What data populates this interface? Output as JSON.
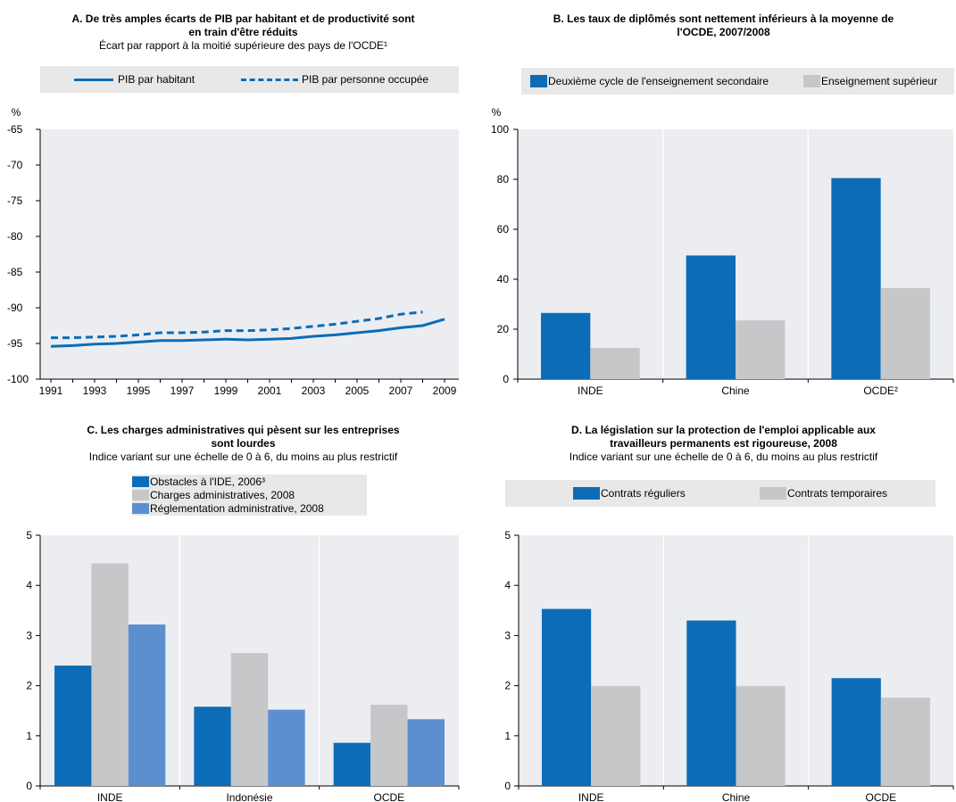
{
  "colors": {
    "blue": "#0c6cb7",
    "grey": "#c6c7c8",
    "lightblue": "#5b8fcf",
    "plotbg": "#ebedf1",
    "legendbg": "#e8e8e8"
  },
  "panels": {
    "a": {
      "title_line1": "A. De très amples écarts de PIB par habitant et de productivité sont",
      "title_line2": "en train d'être réduits",
      "subtitle": "Écart par rapport à la moitié supérieure des pays de l'OCDE¹",
      "legend1": "PIB par habitant",
      "legend2": "PIB par personne occupée",
      "unit": "%"
    },
    "b": {
      "title_line1": "B. Les taux de diplômés sont nettement inférieurs à la moyenne de",
      "title_line2": "l'OCDE, 2007/2008",
      "legend1": "Deuxième cycle de l'enseignement secondaire",
      "legend2": "Enseignement supérieur",
      "unit": "%"
    },
    "c": {
      "title_line1": "C. Les charges administratives qui pèsent sur les entreprises",
      "title_line2": "sont lourdes",
      "subtitle": "Indice variant sur une échelle de 0 à 6, du moins au plus restrictif",
      "legend1": "Obstacles à l'IDE, 2006³",
      "legend2": "Charges administratives, 2008",
      "legend3": "Réglementation administrative, 2008"
    },
    "d": {
      "title_line1": "D. La législation sur la protection de l'emploi applicable aux",
      "title_line2": "travailleurs permanents est rigoureuse, 2008",
      "subtitle": "Indice variant sur une échelle de 0 à 6, du moins au plus restrictif",
      "legend1": "Contrats réguliers",
      "legend2": "Contrats temporaires"
    }
  },
  "chart_data": [
    {
      "type": "line",
      "title": "A. De très amples écarts de PIB par habitant et de productivité sont en train d'être réduits",
      "subtitle": "Écart par rapport à la moitié supérieure des pays de l'OCDE¹",
      "ylabel": "%",
      "ylim": [
        -100,
        -65
      ],
      "yticks": [
        -65,
        -70,
        -75,
        -80,
        -85,
        -90,
        -95,
        -100
      ],
      "xticks": [
        "1991",
        "1993",
        "1995",
        "1997",
        "1999",
        "2001",
        "2003",
        "2005",
        "2007",
        "2009"
      ],
      "xlim": [
        1991,
        2009
      ],
      "series": [
        {
          "name": "PIB par habitant",
          "style": "solid",
          "x": [
            1991,
            1992,
            1993,
            1994,
            1995,
            1996,
            1997,
            1998,
            1999,
            2000,
            2001,
            2002,
            2003,
            2004,
            2005,
            2006,
            2007,
            2008,
            2009
          ],
          "values": [
            -95.4,
            -95.3,
            -95.1,
            -95.0,
            -94.8,
            -94.6,
            -94.6,
            -94.5,
            -94.4,
            -94.5,
            -94.4,
            -94.3,
            -94.0,
            -93.8,
            -93.5,
            -93.2,
            -92.8,
            -92.5,
            -91.6
          ]
        },
        {
          "name": "PIB par personne occupée",
          "style": "dashed",
          "x": [
            1991,
            1992,
            1993,
            1994,
            1995,
            1996,
            1997,
            1998,
            1999,
            2000,
            2001,
            2002,
            2003,
            2004,
            2005,
            2006,
            2007,
            2008
          ],
          "values": [
            -94.2,
            -94.2,
            -94.1,
            -94.0,
            -93.8,
            -93.5,
            -93.5,
            -93.4,
            -93.2,
            -93.2,
            -93.1,
            -92.9,
            -92.6,
            -92.3,
            -91.9,
            -91.5,
            -90.9,
            -90.6
          ]
        }
      ]
    },
    {
      "type": "bar",
      "title": "B. Les taux de diplômés sont nettement inférieurs à la moyenne de l'OCDE, 2007/2008",
      "ylabel": "%",
      "ylim": [
        0,
        100
      ],
      "yticks": [
        0,
        20,
        40,
        60,
        80,
        100
      ],
      "categories": [
        "INDE",
        "Chine",
        "OCDE²"
      ],
      "series": [
        {
          "name": "Deuxième cycle de l'enseignement secondaire",
          "values": [
            26.5,
            49.5,
            80.5
          ]
        },
        {
          "name": "Enseignement supérieur",
          "values": [
            12.5,
            23.5,
            36.5
          ]
        }
      ]
    },
    {
      "type": "bar",
      "title": "C. Les charges administratives qui pèsent sur les entreprises sont lourdes",
      "subtitle": "Indice variant sur une échelle de 0 à 6, du moins au plus restrictif",
      "ylim": [
        0,
        5
      ],
      "yticks": [
        0,
        1,
        2,
        3,
        4,
        5
      ],
      "categories": [
        "INDE",
        "Indonésie",
        "OCDE"
      ],
      "series": [
        {
          "name": "Obstacles à l'IDE, 2006³",
          "values": [
            2.4,
            1.58,
            0.86
          ]
        },
        {
          "name": "Charges administratives, 2008",
          "values": [
            4.44,
            2.65,
            1.62
          ]
        },
        {
          "name": "Réglementation administrative, 2008",
          "values": [
            3.22,
            1.52,
            1.33
          ]
        }
      ]
    },
    {
      "type": "bar",
      "title": "D. La législation sur la protection de l'emploi applicable aux travailleurs permanents est rigoureuse, 2008",
      "subtitle": "Indice variant sur une échelle de 0 à 6, du moins au plus restrictif",
      "ylim": [
        0,
        5
      ],
      "yticks": [
        0,
        1,
        2,
        3,
        4,
        5
      ],
      "categories": [
        "INDE",
        "Chine",
        "OCDE"
      ],
      "series": [
        {
          "name": "Contrats réguliers",
          "values": [
            3.53,
            3.3,
            2.15
          ]
        },
        {
          "name": "Contrats temporaires",
          "values": [
            1.99,
            1.99,
            1.76
          ]
        }
      ]
    }
  ]
}
